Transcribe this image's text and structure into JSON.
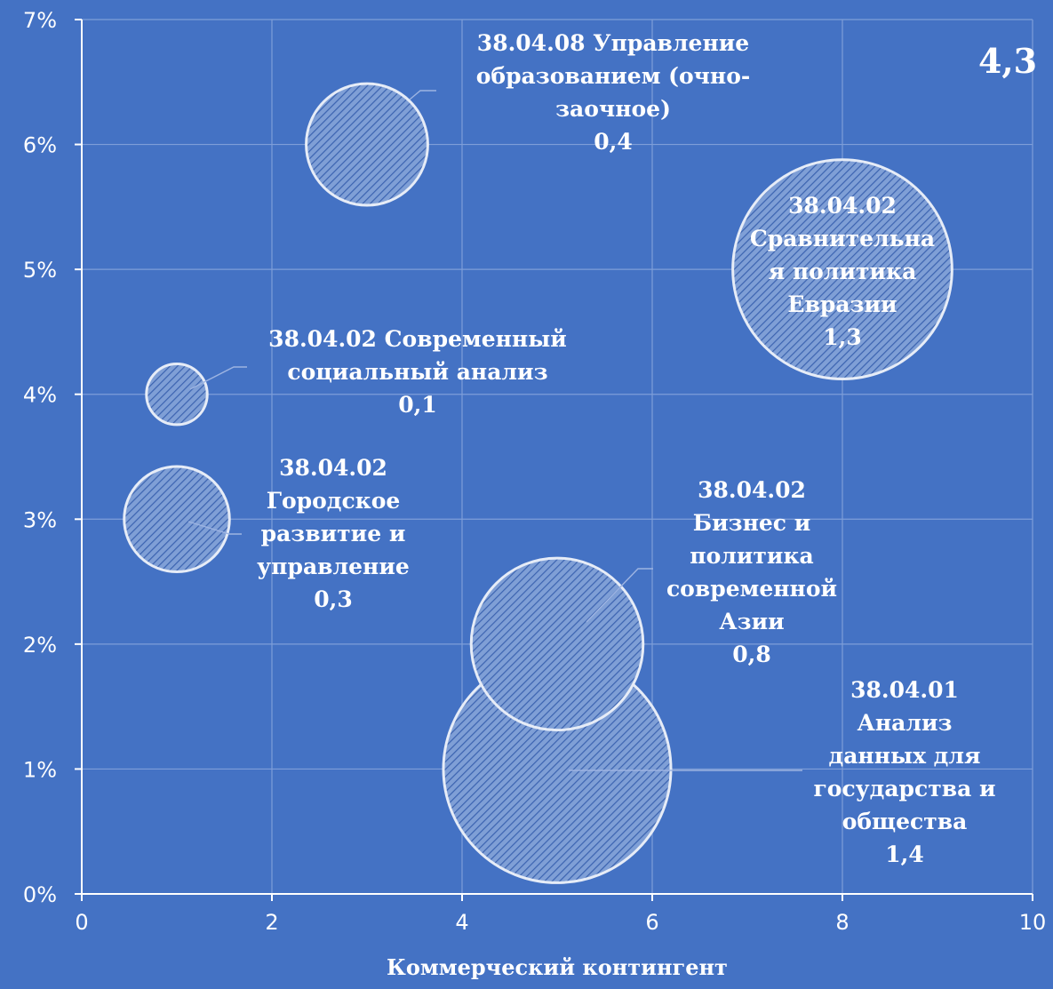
{
  "colors": {
    "background": "#4472c4",
    "bubble_fill": "#7f9fd6",
    "bubble_hatch": "#3b63b0",
    "bubble_stroke": "#e6ecf7",
    "gridline": "#7e9ed8",
    "axis": "#ffffff",
    "text": "#ffffff"
  },
  "chart_data": {
    "type": "bubble",
    "title": "",
    "total_label": "4,3",
    "xlabel": "Коммерческий контингент",
    "ylabel": "",
    "xlim": [
      0,
      10
    ],
    "ylim": [
      0,
      0.07
    ],
    "x_ticks": [
      "0",
      "2",
      "4",
      "6",
      "8",
      "10"
    ],
    "y_ticks": [
      "0%",
      "1%",
      "2%",
      "3%",
      "4%",
      "5%",
      "6%",
      "7%"
    ],
    "grid": true,
    "legend": "none",
    "points": [
      {
        "x": 3,
        "y": 0.06,
        "size": 0.4,
        "label": [
          "38.04.08 Управление",
          "образованием (очно-",
          "заочное)",
          "0,4"
        ]
      },
      {
        "x": 8,
        "y": 0.05,
        "size": 1.3,
        "label": [
          "38.04.02",
          "Сравнительна",
          "я политика",
          "Евразии",
          "1,3"
        ]
      },
      {
        "x": 1,
        "y": 0.04,
        "size": 0.1,
        "label": [
          "38.04.02 Современный",
          "социальный анализ",
          "0,1"
        ]
      },
      {
        "x": 1,
        "y": 0.03,
        "size": 0.3,
        "label": [
          "38.04.02",
          "Городское",
          "развитие и",
          "управление",
          "0,3"
        ]
      },
      {
        "x": 5,
        "y": 0.02,
        "size": 0.8,
        "label": [
          "38.04.02",
          "Бизнес и",
          "политика",
          "современной",
          "Азии",
          "0,8"
        ]
      },
      {
        "x": 5,
        "y": 0.01,
        "size": 1.4,
        "label": [
          "38.04.01",
          "Анализ",
          "данных для",
          "государства и",
          "общества",
          "1,4"
        ]
      }
    ]
  }
}
